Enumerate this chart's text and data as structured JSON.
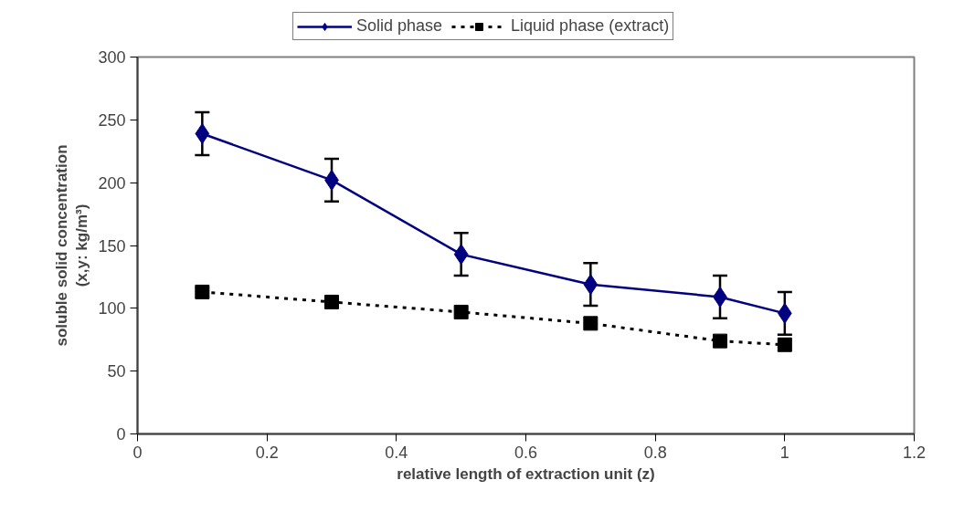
{
  "chart_data": {
    "type": "line",
    "xlabel": "relative length of extraction unit (z)",
    "ylabel": "soluble solid concentration\n(x,y: kg/m³)",
    "x": [
      0.1,
      0.3,
      0.5,
      0.7,
      0.9,
      1.0
    ],
    "series": [
      {
        "name": "Solid phase",
        "color": "#000080",
        "values": [
          239,
          202,
          143,
          119,
          109,
          96
        ],
        "errors": [
          17,
          17,
          17,
          17,
          17,
          17
        ],
        "marker": "diamond",
        "line_style": "solid"
      },
      {
        "name": "Liquid phase (extract)",
        "color": "#000000",
        "values": [
          113,
          105,
          97,
          88,
          74,
          71
        ],
        "marker": "square",
        "line_style": "dotted"
      }
    ],
    "xlim": [
      0,
      1.2
    ],
    "xticks": [
      0,
      0.2,
      0.4,
      0.6,
      0.8,
      1,
      1.2
    ],
    "ylim": [
      0,
      300
    ],
    "yticks": [
      0,
      50,
      100,
      150,
      200,
      250,
      300
    ],
    "grid": false,
    "legend": "top"
  }
}
